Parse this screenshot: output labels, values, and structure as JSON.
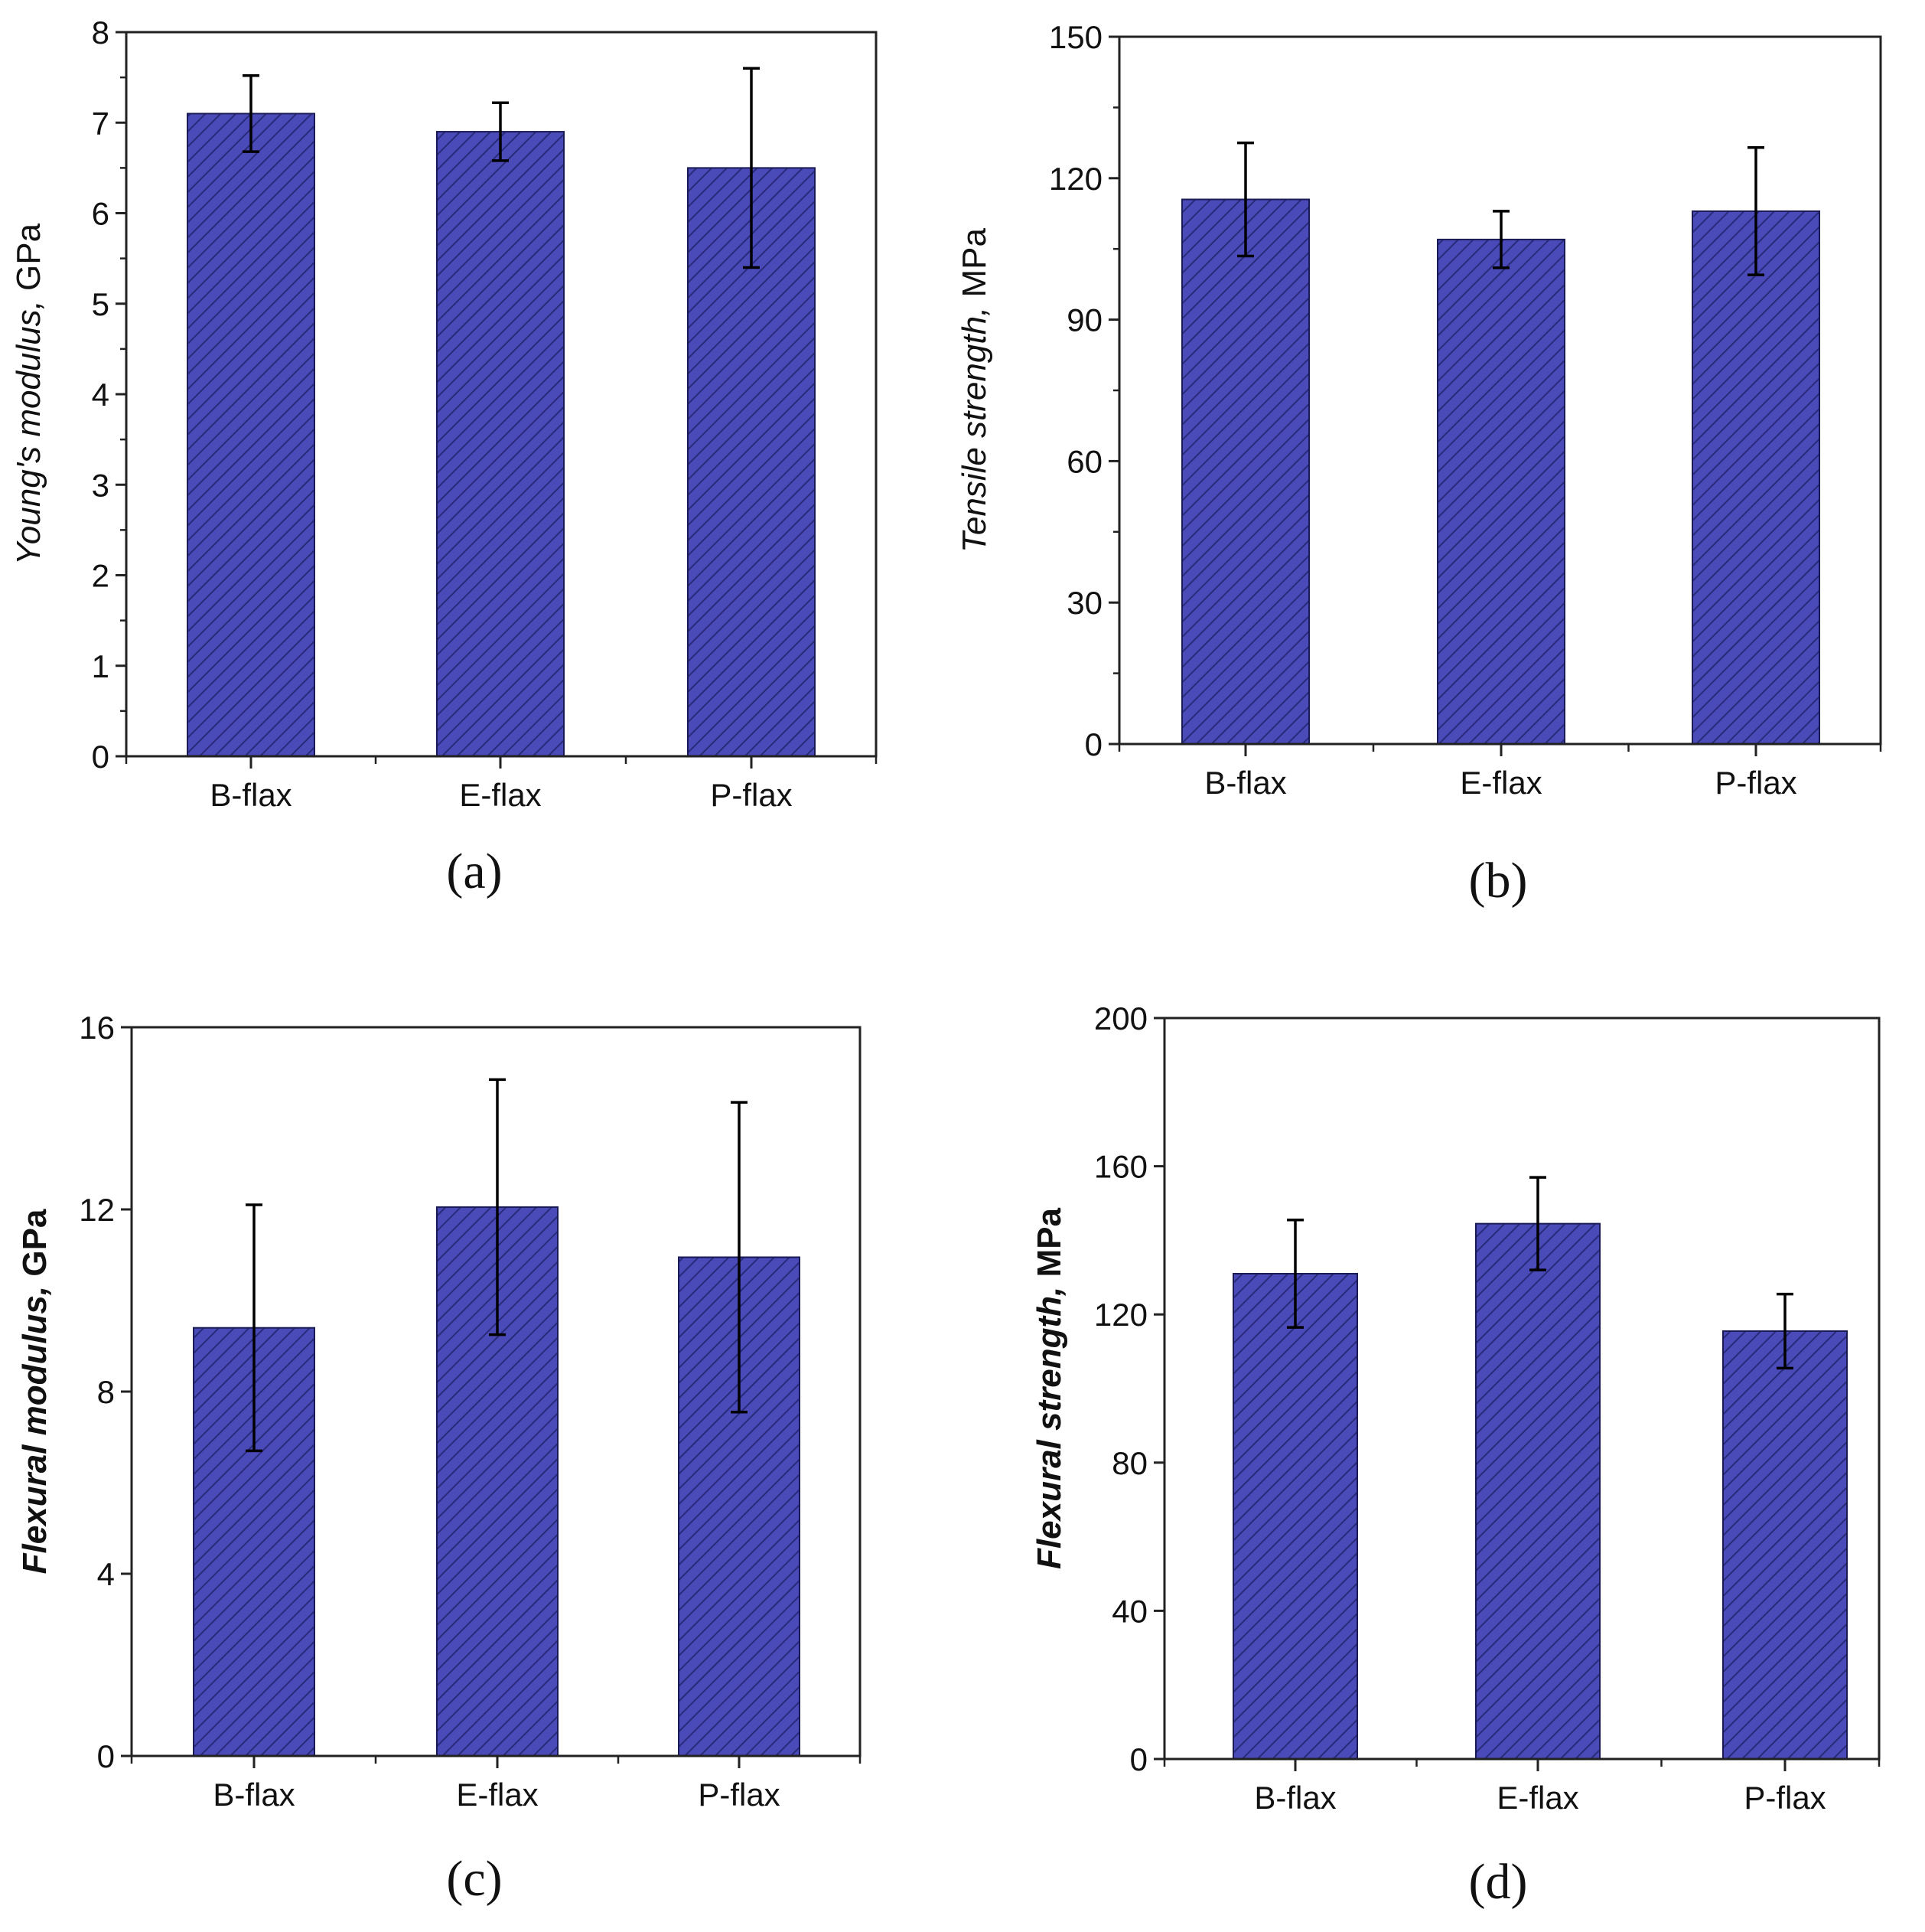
{
  "chart_data": [
    {
      "panel": "(a)",
      "type": "bar",
      "categories": [
        "B-flax",
        "E-flax",
        "P-flax"
      ],
      "values": [
        7.1,
        6.9,
        6.5
      ],
      "errors": [
        0.42,
        0.32,
        1.1
      ],
      "ylabel": "Young's modulus,",
      "yunit": "GPa",
      "ylim": [
        0,
        8
      ],
      "yticks": [
        0,
        1,
        2,
        3,
        4,
        5,
        6,
        7,
        8
      ],
      "yminor": true,
      "bar_color": "#4a4ab8",
      "hatch_color": "#2a2a7a",
      "grid": false
    },
    {
      "panel": "(b)",
      "type": "bar",
      "categories": [
        "B-flax",
        "E-flax",
        "P-flax"
      ],
      "values": [
        115.5,
        107,
        113
      ],
      "errors": [
        12,
        6,
        13.5
      ],
      "ylabel": "Tensile strength,",
      "yunit": "MPa",
      "ylim": [
        0,
        150
      ],
      "yticks": [
        0,
        30,
        60,
        90,
        120,
        150
      ],
      "yminor": true,
      "bar_color": "#4a4ab8",
      "hatch_color": "#2a2a7a",
      "grid": false
    },
    {
      "panel": "(c)",
      "type": "bar",
      "categories": [
        "B-flax",
        "E-flax",
        "P-flax"
      ],
      "values": [
        9.4,
        12.05,
        10.95
      ],
      "errors": [
        2.7,
        2.8,
        3.4
      ],
      "ylabel": "Flexural modulus,",
      "yunit": "GPa",
      "ylim": [
        0,
        16
      ],
      "yticks": [
        0,
        4,
        8,
        12,
        16
      ],
      "yminor": false,
      "bold_label": true,
      "bar_color": "#4a4ab8",
      "hatch_color": "#2a2a7a",
      "grid": false
    },
    {
      "panel": "(d)",
      "type": "bar",
      "categories": [
        "B-flax",
        "E-flax",
        "P-flax"
      ],
      "values": [
        131,
        144.5,
        115.5
      ],
      "errors": [
        14.5,
        12.5,
        10
      ],
      "ylabel": "Flexural strength,",
      "yunit": "MPa",
      "ylim": [
        0,
        200
      ],
      "yticks": [
        0,
        40,
        80,
        120,
        160,
        200
      ],
      "yminor": false,
      "bold_label": true,
      "bar_color": "#4a4ab8",
      "hatch_color": "#2a2a7a",
      "grid": false
    }
  ]
}
